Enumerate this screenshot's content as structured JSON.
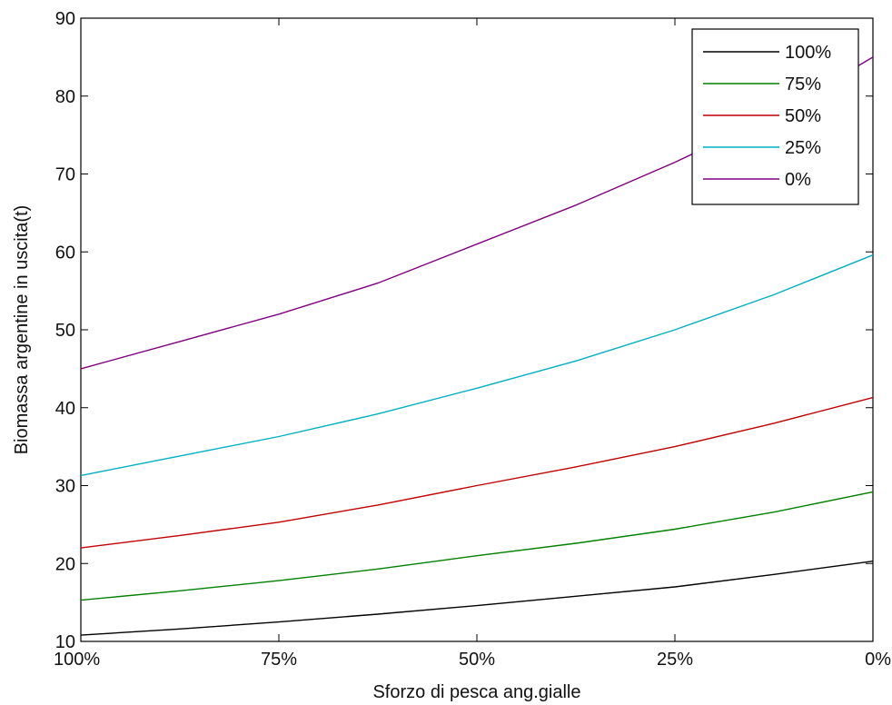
{
  "chart_data": {
    "type": "line",
    "title": "",
    "xlabel": "Sforzo di pesca ang.gialle",
    "ylabel": "Biomassa argentine in uscita(t)",
    "x": [
      0,
      0.125,
      0.25,
      0.375,
      0.5,
      0.625,
      0.75,
      0.875,
      1
    ],
    "xticks": [
      0,
      0.25,
      0.5,
      0.75,
      1
    ],
    "xtick_labels": [
      "100%",
      "75%",
      "50%",
      "25%",
      "0%"
    ],
    "xlim": [
      0,
      1
    ],
    "ylim": [
      10,
      90
    ],
    "yticks": [
      10,
      20,
      30,
      40,
      50,
      60,
      70,
      80,
      90
    ],
    "grid": false,
    "legend_position": "top-right",
    "series": [
      {
        "name": "100%",
        "color": "#000000",
        "values": [
          10.8,
          11.6,
          12.5,
          13.5,
          14.6,
          15.8,
          17.0,
          18.6,
          20.3
        ]
      },
      {
        "name": "75%",
        "color": "#008000",
        "values": [
          15.3,
          16.5,
          17.8,
          19.3,
          21.0,
          22.6,
          24.4,
          26.6,
          29.2
        ]
      },
      {
        "name": "50%",
        "color": "#c00000",
        "values": [
          22.0,
          23.6,
          25.3,
          27.5,
          30.0,
          32.4,
          35.0,
          38.0,
          41.3
        ]
      },
      {
        "name": "25%",
        "color": "#00b0c0",
        "values": [
          31.3,
          33.8,
          36.3,
          39.2,
          42.5,
          46.0,
          50.0,
          54.5,
          59.6
        ]
      },
      {
        "name": "0%",
        "color": "#800080",
        "values": [
          45.0,
          48.5,
          52.0,
          56.0,
          61.0,
          66.0,
          71.5,
          77.5,
          85.0
        ]
      }
    ]
  }
}
